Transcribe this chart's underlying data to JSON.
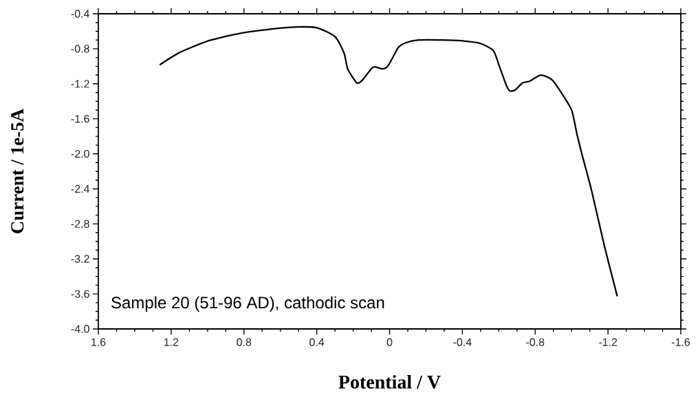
{
  "chart_data": {
    "type": "line",
    "xlabel": "Potential / V",
    "ylabel": "Current / 1e-5A",
    "annotations": [
      "Sample 20 (51-96 AD), cathodic scan"
    ],
    "xlim": [
      1.6,
      -1.6
    ],
    "ylim": [
      -4.0,
      -0.4
    ],
    "xticks": [
      1.6,
      1.2,
      0.8,
      0.4,
      0,
      -0.4,
      -0.8,
      -1.2,
      -1.6
    ],
    "yticks": [
      -0.4,
      -0.8,
      -1.2,
      -1.6,
      {
        "value": -2.0,
        "label": "-2.0"
      },
      -2.4,
      -2.8,
      -3.2,
      -3.6,
      {
        "value": -4.0,
        "label": "-4.0"
      }
    ],
    "line_style": "solid",
    "series": [
      {
        "color": "#000000",
        "x": [
          1.26,
          1.16,
          1.06,
          0.98,
          0.81,
          0.63,
          0.5,
          0.4,
          0.3,
          0.25,
          0.23,
          0.18,
          0.15,
          0.09,
          0.04,
          0.01,
          -0.03,
          -0.05,
          -0.09,
          -0.16,
          -0.29,
          -0.4,
          -0.5,
          -0.57,
          -0.6,
          -0.64,
          -0.66,
          -0.69,
          -0.73,
          -0.77,
          -0.83,
          -0.89,
          -0.94,
          -1.0,
          -1.03,
          -1.06,
          -1.11,
          -1.18,
          -1.25
        ],
        "values": [
          -0.98,
          -0.85,
          -0.76,
          -0.7,
          -0.62,
          -0.57,
          -0.55,
          -0.56,
          -0.66,
          -0.85,
          -1.03,
          -1.19,
          -1.16,
          -1.01,
          -1.03,
          -1.0,
          -0.85,
          -0.78,
          -0.73,
          -0.7,
          -0.7,
          -0.71,
          -0.74,
          -0.82,
          -0.98,
          -1.21,
          -1.28,
          -1.27,
          -1.19,
          -1.17,
          -1.1,
          -1.15,
          -1.29,
          -1.5,
          -1.78,
          -2.03,
          -2.42,
          -3.05,
          -3.62
        ]
      }
    ]
  }
}
